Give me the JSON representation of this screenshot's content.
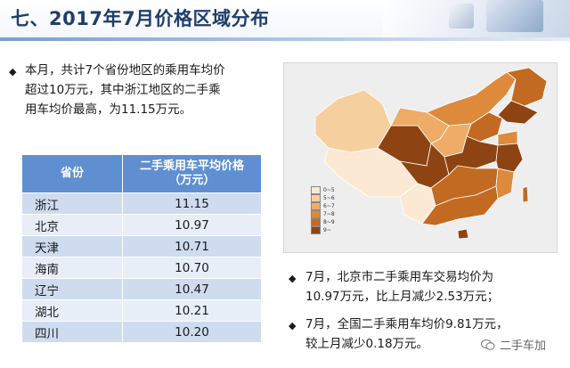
{
  "header": {
    "title": "七、2017年7月价格区域分布"
  },
  "intro": {
    "lines": [
      "本月，共计7个省份地区的乘用车均价",
      "超过10万元，其中浙江地区的二手乘",
      "用车均价最高，为11.15万元。"
    ]
  },
  "table": {
    "header_col1": "省份",
    "header_col2_line1": "二手乘用车平均价格",
    "header_col2_line2": "（万元）",
    "rows": [
      {
        "province": "浙江",
        "price": "11.15"
      },
      {
        "province": "北京",
        "price": "10.97"
      },
      {
        "province": "天津",
        "price": "10.71"
      },
      {
        "province": "海南",
        "price": "10.70"
      },
      {
        "province": "辽宁",
        "price": "10.47"
      },
      {
        "province": "湖北",
        "price": "10.21"
      },
      {
        "province": "四川",
        "price": "10.20"
      }
    ]
  },
  "map": {
    "legend": [
      {
        "label": "0~5",
        "color": "#fbe9d3"
      },
      {
        "label": "5~6",
        "color": "#f6cf9f"
      },
      {
        "label": "6~7",
        "color": "#eeac66"
      },
      {
        "label": "7~8",
        "color": "#de8a3c"
      },
      {
        "label": "8~9",
        "color": "#c26a22"
      },
      {
        "label": "9~",
        "color": "#8e4412"
      }
    ]
  },
  "notes": {
    "note1_line1": "7月，北京市二手乘用车交易均价为",
    "note1_line2": "10.97万元，比上月减少2.53万元；",
    "note2_line1": "7月，全国二手乘用车均价9.81万元，",
    "note2_line2": "较上月减少0.18万元。"
  },
  "watermark": {
    "text": "二手车加"
  }
}
